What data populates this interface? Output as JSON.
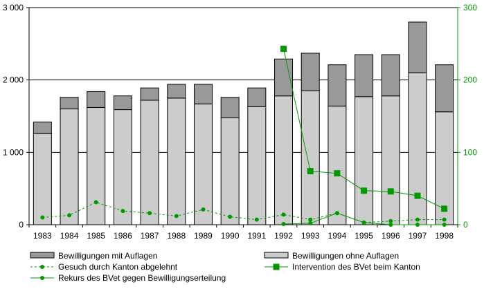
{
  "chart_data": {
    "type": "bar",
    "title": "",
    "xlabel": "",
    "ylabel": "",
    "y2label": "",
    "categories": [
      "1983",
      "1984",
      "1985",
      "1986",
      "1987",
      "1988",
      "1989",
      "1990",
      "1991",
      "1992",
      "1993",
      "1994",
      "1995",
      "1996",
      "1997",
      "1998"
    ],
    "ylim": [
      0,
      3000
    ],
    "y2lim": [
      0,
      300
    ],
    "yticks": [
      "0",
      "1 000",
      "2 000",
      "3 000"
    ],
    "y2ticks": [
      "0",
      "100",
      "200",
      "300"
    ],
    "grid": true,
    "legend_position": "bottom",
    "stacked_bars": [
      {
        "name": "Bewilligungen ohne Auflagen",
        "color": "#cccccc",
        "values": [
          1260,
          1600,
          1620,
          1590,
          1720,
          1750,
          1670,
          1480,
          1630,
          1780,
          1850,
          1640,
          1770,
          1780,
          2100,
          1560
        ]
      },
      {
        "name": "Bewilligungen mit Auflagen",
        "color": "#999999",
        "values": [
          160,
          160,
          220,
          190,
          170,
          190,
          270,
          280,
          260,
          510,
          520,
          570,
          580,
          570,
          700,
          650
        ]
      }
    ],
    "line_series": [
      {
        "name": "Gesuch durch Kanton abgelehnt",
        "color": "#009900",
        "style": "dashed",
        "marker": "circle",
        "axis": "right",
        "values": [
          10,
          13,
          31,
          19,
          16,
          12,
          21,
          11,
          7,
          14,
          7,
          16,
          3,
          5,
          7,
          7
        ]
      },
      {
        "name": "Intervention des BVet beim Kanton",
        "color": "#009900",
        "style": "solid",
        "marker": "square",
        "axis": "right",
        "values": [
          null,
          null,
          null,
          null,
          null,
          null,
          null,
          null,
          null,
          243,
          74,
          71,
          47,
          46,
          40,
          22
        ]
      },
      {
        "name": "Rekurs des BVet gegen Bewilligungserteilung",
        "color": "#009900",
        "style": "solid",
        "marker": "circle",
        "axis": "right",
        "values": [
          null,
          null,
          null,
          null,
          null,
          null,
          null,
          null,
          null,
          1,
          2,
          16,
          3,
          0,
          0,
          0
        ]
      }
    ],
    "legend": [
      {
        "label": "Bewilligungen mit Auflagen",
        "kind": "box",
        "color": "#999999"
      },
      {
        "label": "Bewilligungen ohne Auflagen",
        "kind": "box",
        "color": "#cccccc"
      },
      {
        "label": "Gesuch durch Kanton abgelehnt",
        "kind": "dashed-circle",
        "color": "#009900"
      },
      {
        "label": "Intervention des BVet beim Kanton",
        "kind": "solid-square",
        "color": "#009900"
      },
      {
        "label": "Rekurs des BVet gegen Bewilligungserteilung",
        "kind": "solid-circle",
        "color": "#009900"
      }
    ]
  }
}
